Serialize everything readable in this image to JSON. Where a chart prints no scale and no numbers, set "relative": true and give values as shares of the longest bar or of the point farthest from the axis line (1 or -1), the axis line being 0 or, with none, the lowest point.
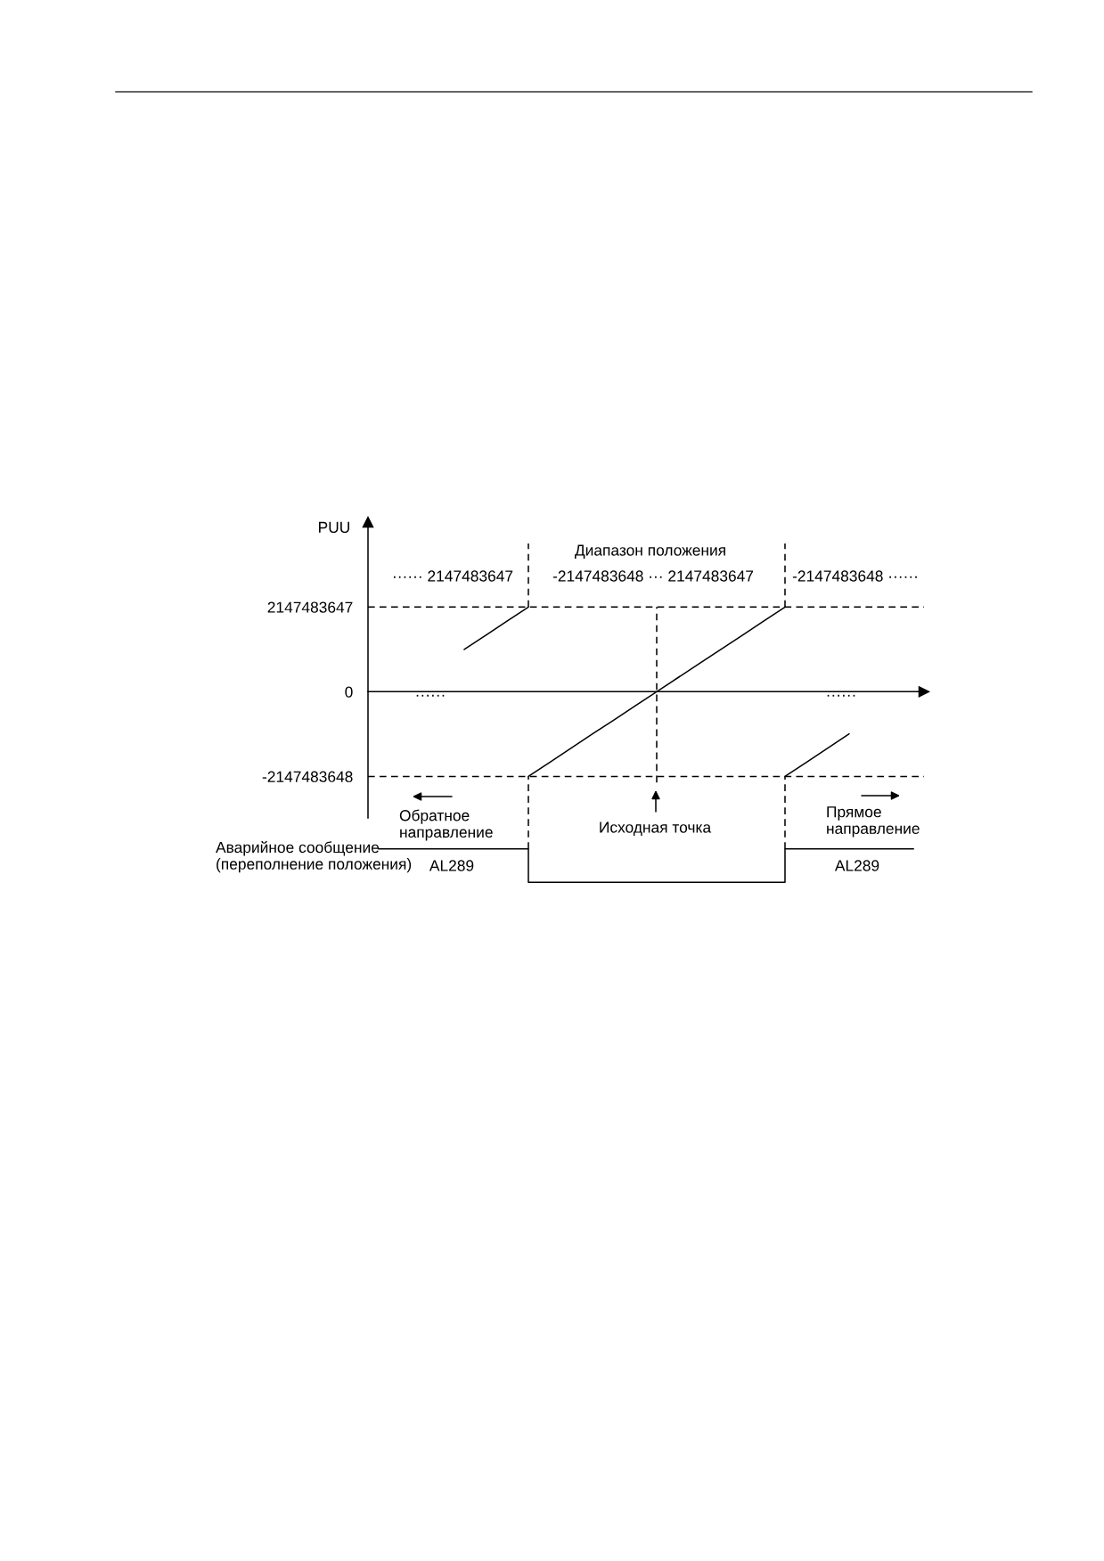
{
  "chart_data": [
    {
      "type": "line",
      "ylabel": "PUU",
      "categories": [
        null,
        null,
        null,
        null,
        null,
        null,
        null,
        null,
        null,
        null,
        null,
        null,
        null,
        null,
        null,
        null,
        null,
        null,
        null,
        null,
        null,
        null,
        null,
        null,
        null,
        null
      ],
      "series": [
        {
          "color": "#000000",
          "values": [
            null,
            null,
            null,
            null,
            1070000000,
            1430000000,
            1790000000,
            2147483647,
            null,
            null,
            null,
            null,
            null,
            null,
            null,
            null,
            null,
            null,
            null,
            null,
            null,
            null,
            null,
            null,
            null,
            null
          ]
        },
        {
          "color": "#000000",
          "values": [
            null,
            null,
            null,
            null,
            null,
            null,
            null,
            -2147483648,
            -1790000000,
            -1430000000,
            -1070000000,
            -716000000,
            -358000000,
            0,
            358000000,
            716000000,
            1070000000,
            1430000000,
            1790000000,
            2147483647,
            null,
            null,
            null,
            null,
            null,
            null
          ]
        },
        {
          "color": "#000000",
          "values": [
            null,
            null,
            null,
            null,
            null,
            null,
            null,
            null,
            null,
            null,
            null,
            null,
            null,
            null,
            null,
            null,
            null,
            null,
            null,
            -2147483648,
            -1790000000,
            -1430000000,
            -1070000000,
            null,
            null,
            null
          ]
        }
      ],
      "ylim": [
        -3200000000,
        4300000000
      ],
      "yticks": [
        -2147483648,
        0,
        2147483647
      ],
      "ref_lines": [
        {
          "axis": "y",
          "value": 2147483647,
          "color": "#000000",
          "line_style": "dashed"
        },
        {
          "axis": "y",
          "value": -2147483648,
          "color": "#000000",
          "line_style": "dashed"
        }
      ],
      "annotations": [
        "Диапазон положения",
        "-2147483648 ··· 2147483647",
        "······ 2147483647",
        "-2147483648 ······",
        "······",
        "······",
        "Обратное\nнаправление",
        "Исходная точка",
        "Прямое\nнаправление"
      ],
      "tick_labels": "y",
      "line_style": "solid"
    },
    {
      "type": "step",
      "ylabel": "Аварийное сообщение\n(переполнение положения)",
      "categories": [
        null,
        null,
        null,
        null,
        null,
        null,
        null,
        null,
        null,
        null,
        null,
        null,
        null,
        null,
        null,
        null,
        null,
        null,
        null,
        null,
        null,
        null,
        null,
        null,
        null,
        null
      ],
      "values": [
        1,
        1,
        1,
        1,
        1,
        1,
        1,
        0,
        0,
        0,
        0,
        0,
        0,
        0,
        0,
        0,
        0,
        0,
        0,
        1,
        1,
        1,
        1,
        1,
        1,
        1
      ],
      "color": "#000000",
      "relative": true,
      "tick_labels": false,
      "line_style": "solid",
      "annotations": [
        "AL289",
        "AL289"
      ]
    }
  ]
}
